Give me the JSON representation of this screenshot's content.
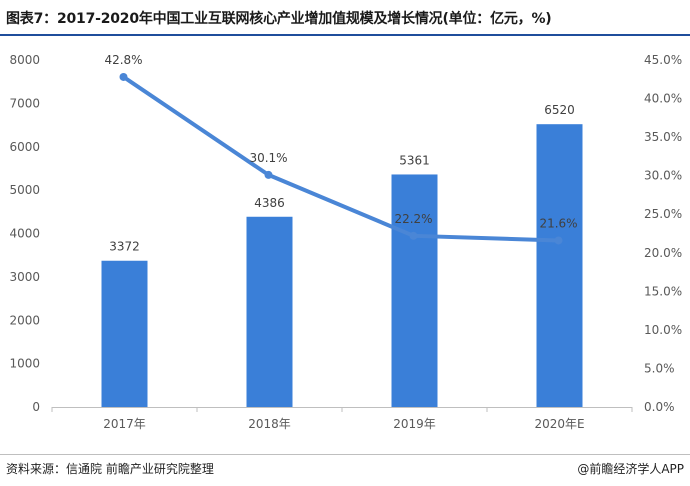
{
  "chart_data": {
    "type": "bar+line",
    "title": "图表7：2017-2020年中国工业互联网核心产业增加值规模及增长情况(单位：亿元，%)",
    "categories": [
      "2017年",
      "2018年",
      "2019年",
      "2020年E"
    ],
    "series": [
      {
        "type": "bar",
        "axis": "left",
        "values": [
          3372,
          4386,
          5361,
          6520
        ],
        "labels": [
          "3372",
          "4386",
          "5361",
          "6520"
        ],
        "color": "#3a7fd8"
      },
      {
        "type": "line",
        "axis": "right",
        "values": [
          42.8,
          30.1,
          22.2,
          21.6
        ],
        "labels": [
          "42.8%",
          "30.1%",
          "22.2%",
          "21.6%"
        ],
        "color": "#4a86d6"
      }
    ],
    "y_left": {
      "range": [
        0,
        8000
      ],
      "ticks": [
        0,
        1000,
        2000,
        3000,
        4000,
        5000,
        6000,
        7000,
        8000
      ],
      "tick_labels": [
        "0",
        "1000",
        "2000",
        "3000",
        "4000",
        "5000",
        "6000",
        "7000",
        "8000"
      ]
    },
    "y_right": {
      "range": [
        0,
        45
      ],
      "ticks": [
        0,
        5,
        10,
        15,
        20,
        25,
        30,
        35,
        40,
        45
      ],
      "tick_labels": [
        "0.0%",
        "5.0%",
        "10.0%",
        "15.0%",
        "20.0%",
        "25.0%",
        "30.0%",
        "35.0%",
        "40.0%",
        "45.0%"
      ]
    },
    "grid": false
  },
  "footer": {
    "source": "资料来源：信通院 前瞻产业研究院整理",
    "brand": "@前瞻经济学人APP"
  }
}
